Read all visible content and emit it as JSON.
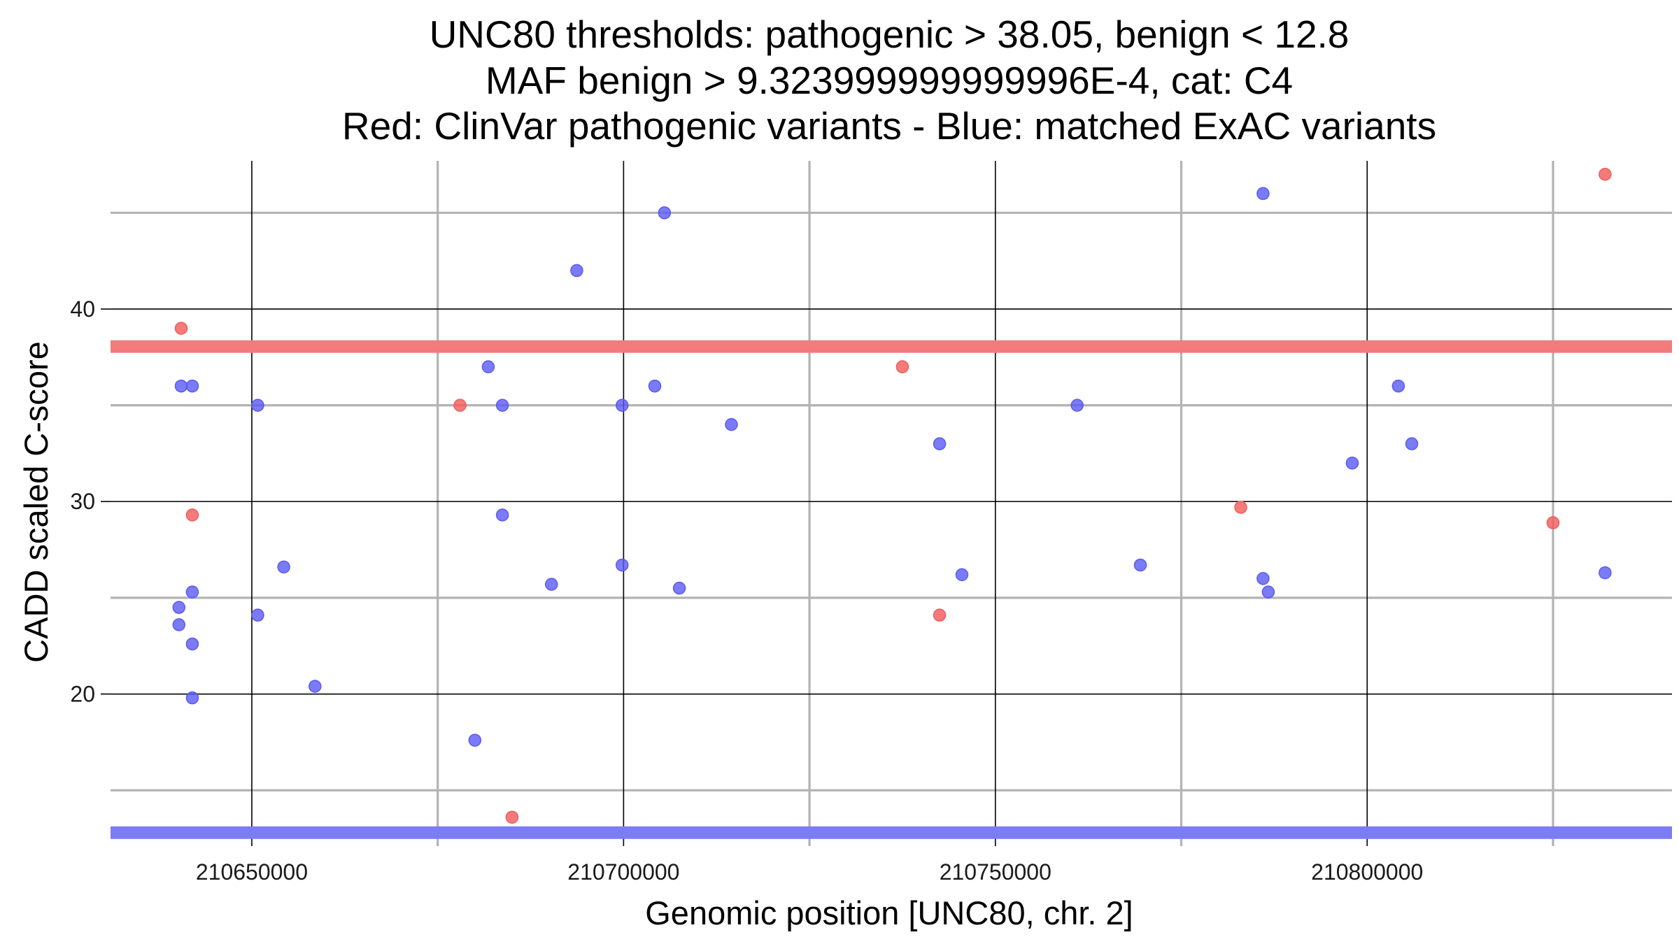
{
  "chart_data": {
    "type": "scatter",
    "title_lines": [
      "UNC80 thresholds: pathogenic > 38.05, benign < 12.8",
      "MAF benign > 9.323999999999996E-4, cat: C4",
      "Red: ClinVar pathogenic variants - Blue: matched ExAC variants"
    ],
    "xlabel": "Genomic position [UNC80, chr. 2]",
    "ylabel": "CADD scaled C-score",
    "xlim": [
      210631000,
      210841000
    ],
    "ylim": [
      12.1,
      47.7
    ],
    "x_ticks": [
      210650000,
      210700000,
      210750000,
      210800000
    ],
    "x_tick_labels": [
      "210650000",
      "210700000",
      "210750000",
      "210800000"
    ],
    "x_minor_gridlines": [
      210675000,
      210725000,
      210775000,
      210825000
    ],
    "y_ticks": [
      20,
      30,
      40
    ],
    "y_tick_labels": [
      "20",
      "30",
      "40"
    ],
    "y_minor_gridlines": [
      15,
      25,
      35,
      45
    ],
    "thresholds": [
      {
        "name": "pathogenic",
        "value": 38.05,
        "color": "#f07c7c"
      },
      {
        "name": "benign",
        "value": 12.8,
        "color": "#7c7cf5"
      }
    ],
    "series": [
      {
        "name": "ClinVar pathogenic variants",
        "color": "#f25a5a",
        "points": [
          [
            210640500,
            39.0
          ],
          [
            210642000,
            29.3
          ],
          [
            210678000,
            35.0
          ],
          [
            210685000,
            13.6
          ],
          [
            210737500,
            37.0
          ],
          [
            210742500,
            24.1
          ],
          [
            210783000,
            29.7
          ],
          [
            210825000,
            28.9
          ],
          [
            210832000,
            47.0
          ]
        ]
      },
      {
        "name": "matched ExAC variants",
        "color": "#5a5af2",
        "points": [
          [
            210640500,
            36.0
          ],
          [
            210640200,
            24.5
          ],
          [
            210640200,
            23.6
          ],
          [
            210642000,
            36.0
          ],
          [
            210642000,
            25.3
          ],
          [
            210642000,
            22.6
          ],
          [
            210642000,
            19.8
          ],
          [
            210650800,
            35.0
          ],
          [
            210650800,
            24.1
          ],
          [
            210654300,
            26.6
          ],
          [
            210658500,
            20.4
          ],
          [
            210680000,
            17.6
          ],
          [
            210681800,
            37.0
          ],
          [
            210683700,
            35.0
          ],
          [
            210683700,
            29.3
          ],
          [
            210690300,
            25.7
          ],
          [
            210693700,
            42.0
          ],
          [
            210699800,
            35.0
          ],
          [
            210699800,
            26.7
          ],
          [
            210704200,
            36.0
          ],
          [
            210705500,
            45.0
          ],
          [
            210707500,
            25.5
          ],
          [
            210714500,
            34.0
          ],
          [
            210742500,
            33.0
          ],
          [
            210745500,
            26.2
          ],
          [
            210761000,
            35.0
          ],
          [
            210769500,
            26.7
          ],
          [
            210786000,
            46.0
          ],
          [
            210786000,
            26.0
          ],
          [
            210786700,
            25.3
          ],
          [
            210798000,
            32.0
          ],
          [
            210804200,
            36.0
          ],
          [
            210806000,
            33.0
          ],
          [
            210832000,
            26.3
          ]
        ]
      }
    ]
  }
}
